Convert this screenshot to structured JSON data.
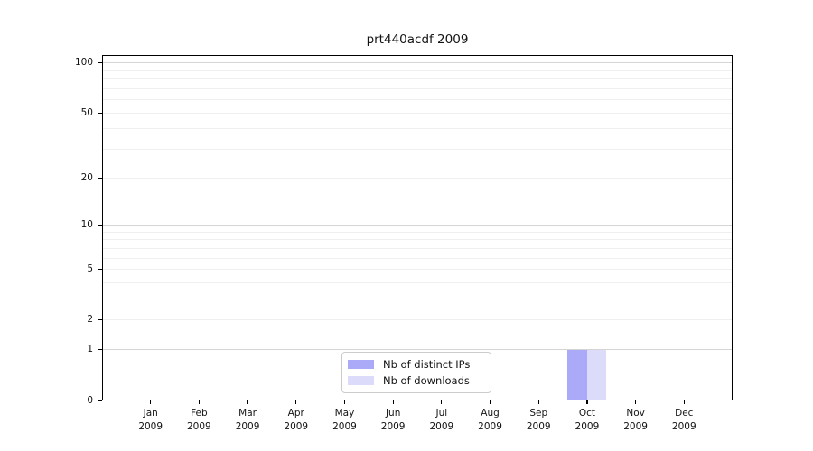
{
  "chart_data": {
    "type": "bar",
    "title": "prt440acdf 2009",
    "categories": [
      "Jan",
      "Feb",
      "Mar",
      "Apr",
      "May",
      "Jun",
      "Jul",
      "Aug",
      "Sep",
      "Oct",
      "Nov",
      "Dec"
    ],
    "x_year": "2009",
    "series": [
      {
        "name": "Nb of distinct IPs",
        "color": "#abaaf8",
        "values": [
          0,
          0,
          0,
          0,
          0,
          0,
          0,
          0,
          0,
          1,
          0,
          0
        ]
      },
      {
        "name": "Nb of downloads",
        "color": "#dcdcfa",
        "values": [
          0,
          0,
          0,
          0,
          0,
          0,
          0,
          0,
          0,
          1,
          0,
          0
        ]
      }
    ],
    "y_axis": {
      "scale": "log1p",
      "tick_values": [
        0,
        1,
        2,
        5,
        10,
        20,
        50,
        100
      ],
      "major_grid_values": [
        1,
        10,
        100
      ],
      "minor_grid_values": [
        2,
        3,
        4,
        5,
        6,
        7,
        8,
        9,
        20,
        30,
        40,
        50,
        60,
        70,
        80,
        90
      ],
      "ylim": [
        0,
        111.5
      ]
    },
    "legend": {
      "position": "lower center"
    },
    "colors": {
      "grid_major": "#d5d5d5",
      "grid_minor": "#efefef",
      "spine": "#000000",
      "background": "#ffffff"
    }
  }
}
